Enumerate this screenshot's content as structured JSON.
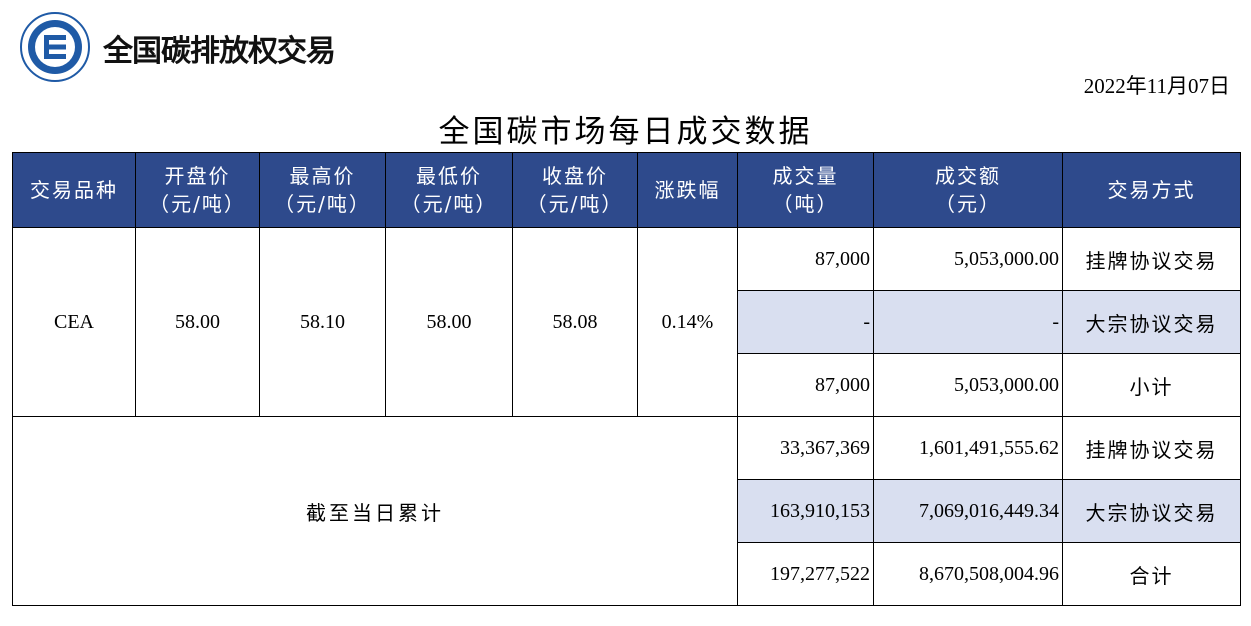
{
  "brand": {
    "name": "全国碳排放权交易"
  },
  "date": "2022年11月07日",
  "title": "全国碳市场每日成交数据",
  "colors": {
    "header_bg": "#2e4a8c",
    "header_text": "#ffffff",
    "shaded_row": "#d9dff0",
    "logo_blue": "#1f5aa6"
  },
  "header": {
    "product": "交易品种",
    "open": [
      "开盘价",
      "（元/吨）"
    ],
    "high": [
      "最高价",
      "（元/吨）"
    ],
    "low": [
      "最低价",
      "（元/吨）"
    ],
    "close": [
      "收盘价",
      "（元/吨）"
    ],
    "change": "涨跌幅",
    "volume": [
      "成交量",
      "（吨）"
    ],
    "amount": [
      "成交额",
      "（元）"
    ],
    "mode": "交易方式"
  },
  "daily": {
    "product": "CEA",
    "open": "58.00",
    "high": "58.10",
    "low": "58.00",
    "close": "58.08",
    "change": "0.14%",
    "rows": [
      {
        "volume": "87,000",
        "amount": "5,053,000.00",
        "mode": "挂牌协议交易"
      },
      {
        "volume": "-",
        "amount": "-",
        "mode": "大宗协议交易"
      },
      {
        "volume": "87,000",
        "amount": "5,053,000.00",
        "mode": "小计"
      }
    ]
  },
  "cumulative": {
    "label": "截至当日累计",
    "rows": [
      {
        "volume": "33,367,369",
        "amount": "1,601,491,555.62",
        "mode": "挂牌协议交易"
      },
      {
        "volume": "163,910,153",
        "amount": "7,069,016,449.34",
        "mode": "大宗协议交易"
      },
      {
        "volume": "197,277,522",
        "amount": "8,670,508,004.96",
        "mode": "合计"
      }
    ]
  }
}
